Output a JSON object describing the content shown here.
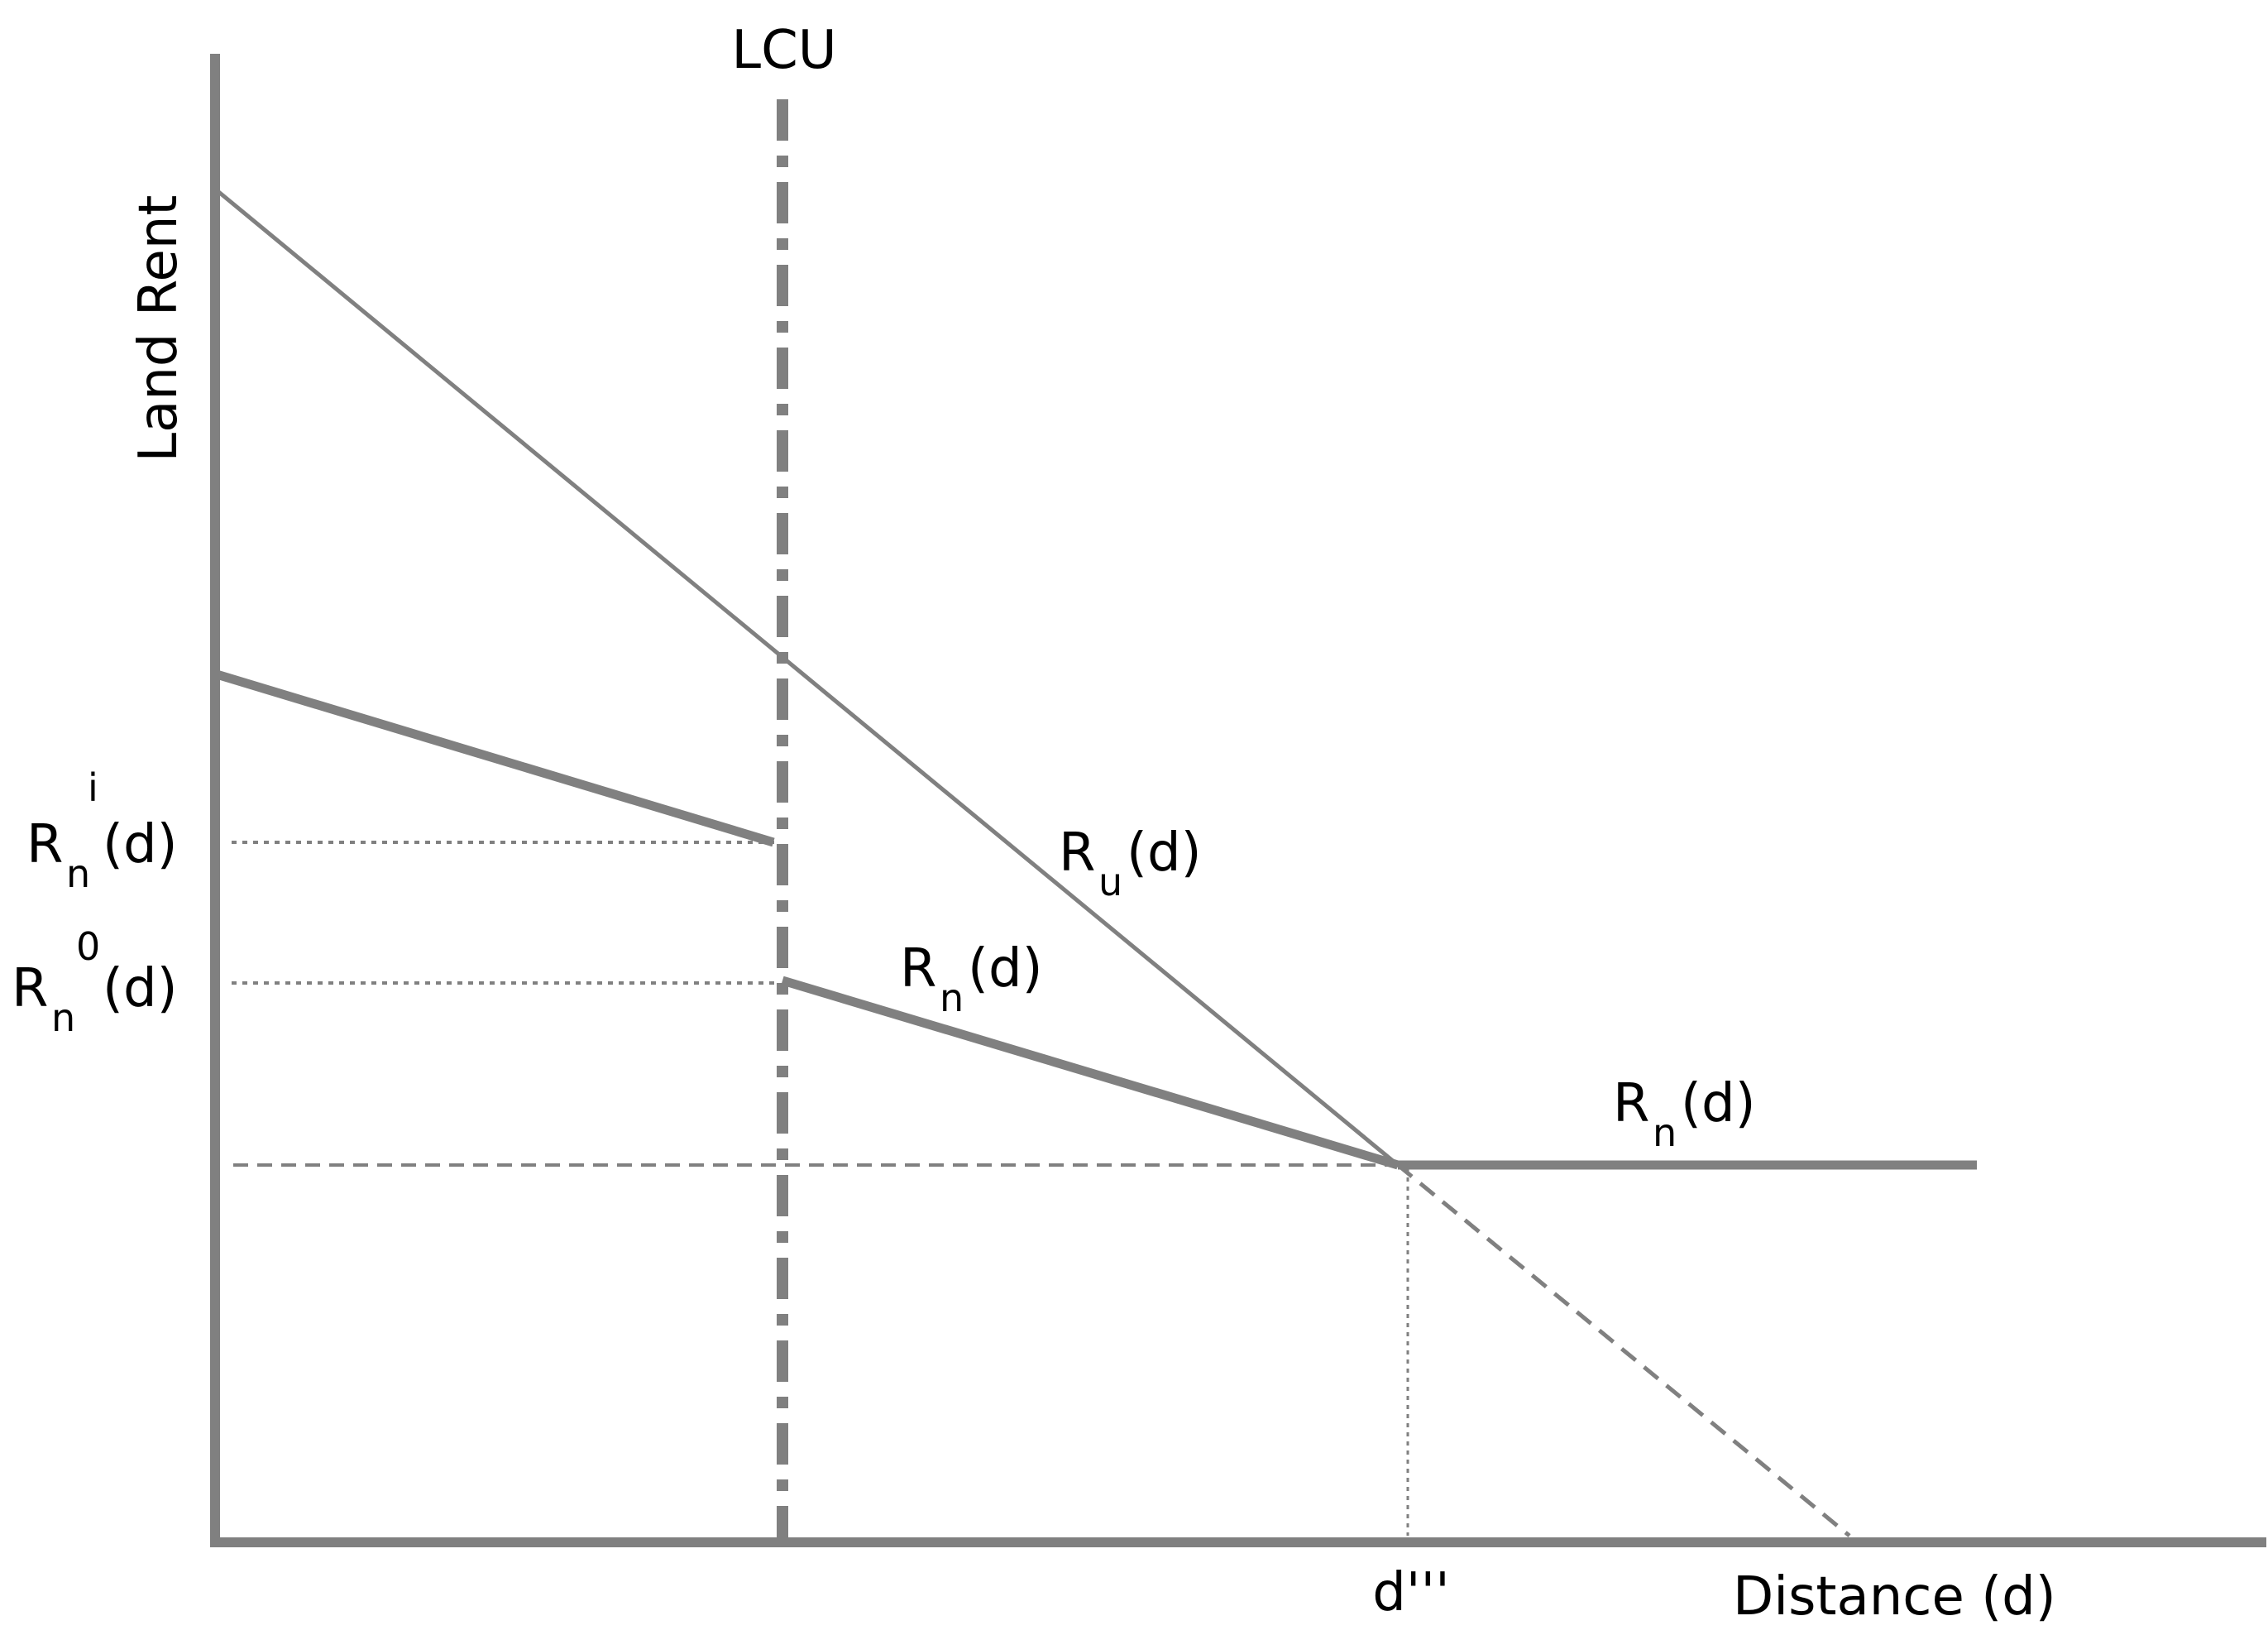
{
  "colors": {
    "line": "#808080",
    "text": "#000000",
    "background": "#ffffff"
  },
  "axes": {
    "y_label": "Land Rent",
    "x_label": "Distance (d)"
  },
  "annotations": {
    "lcu": "LCU",
    "d_threshold": "d'''"
  },
  "curve_labels": {
    "urban": {
      "base": "R",
      "sub": "u",
      "arg": "(d)"
    },
    "rural_mid": {
      "base": "R",
      "sub": "n",
      "arg": "(d)"
    },
    "rural_flat": {
      "base": "R",
      "sub": "n",
      "arg": "(d)"
    }
  },
  "axis_value_labels": {
    "rn_i": {
      "base": "R",
      "sub": "n",
      "sup": "i",
      "arg": "(d)"
    },
    "rn_0": {
      "base": "R",
      "sub": "n",
      "sup": "0",
      "arg": "(d)"
    }
  }
}
